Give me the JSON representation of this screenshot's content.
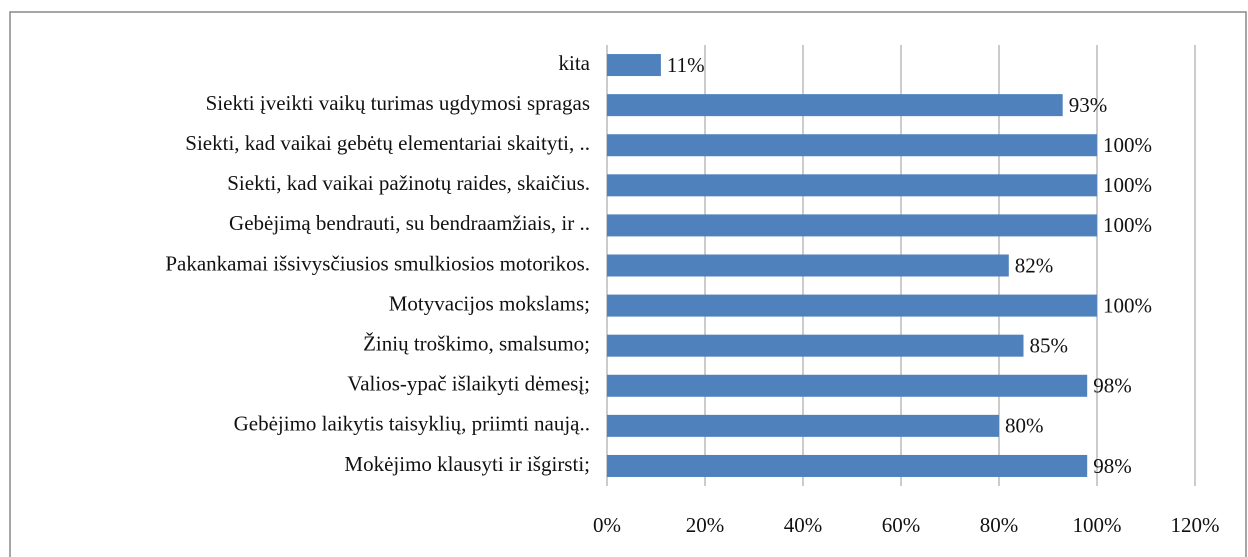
{
  "chart_data": {
    "type": "bar",
    "orientation": "horizontal",
    "categories": [
      "kita",
      "Siekti įveikti vaikų turimas ugdymosi spragas",
      "Siekti, kad vaikai gebėtų elementariai skaityti, ..",
      "Siekti, kad vaikai pažinotų raides, skaičius.",
      "Gebėjimą bendrauti, su bendraamžiais, ir ..",
      "Pakankamai išsivysčiusios smulkiosios motorikos.",
      "Motyvacijos mokslams;",
      "Žinių troškimo, smalsumo;",
      "Valios-ypač išlaikyti dėmesį;",
      "Gebėjimo laikytis taisyklių, priimti naują..",
      "Mokėjimo klausyti ir išgirsti;"
    ],
    "values": [
      11,
      93,
      100,
      100,
      100,
      82,
      100,
      85,
      98,
      80,
      98
    ],
    "value_labels": [
      "11%",
      "93%",
      "100%",
      "100%",
      "100%",
      "82%",
      "100%",
      "85%",
      "98%",
      "80%",
      "98%"
    ],
    "color": "#4f81bd",
    "xlim": [
      0,
      120
    ],
    "xticks": [
      {
        "value": 0,
        "label": "0%"
      },
      {
        "value": 20,
        "label": "20%"
      },
      {
        "value": 40,
        "label": "40%"
      },
      {
        "value": 60,
        "label": "60%"
      },
      {
        "value": 80,
        "label": "80%"
      },
      {
        "value": 100,
        "label": "100%"
      },
      {
        "value": 120,
        "label": "120%"
      }
    ],
    "grid": true
  }
}
